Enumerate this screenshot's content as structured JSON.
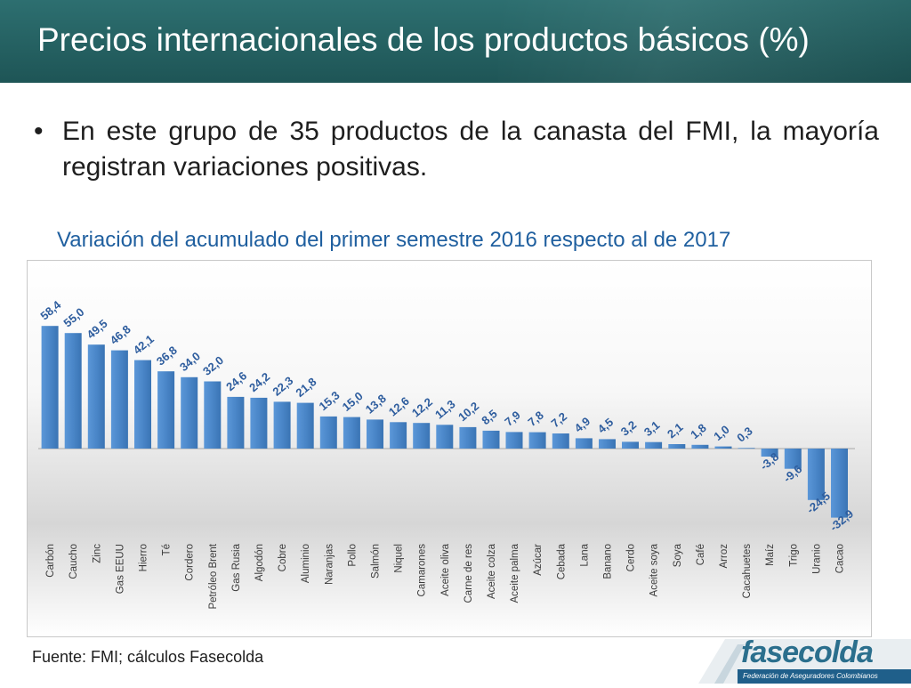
{
  "slide": {
    "title": "Precios internacionales de los productos básicos (%)",
    "bullet_symbol": "•",
    "bullet_text": "En este grupo de 35 productos de la canasta del FMI, la mayoría registran variaciones positivas.",
    "chart_heading": "Variación del acumulado del primer semestre 2016 respecto al de 2017",
    "source": "Fuente: FMI; cálculos Fasecolda"
  },
  "logo": {
    "name": "fasecolda",
    "subtitle": "Federación de Aseguradores Colombianos"
  },
  "colors": {
    "header": "#1e5556",
    "bar": "#4a86c8",
    "value_label": "#2e5d9e",
    "heading": "#1f5f9f"
  },
  "chart_data": {
    "type": "bar",
    "title": "Variación del acumulado del primer semestre 2016 respecto al de 2017",
    "xlabel": "",
    "ylabel": "",
    "ylim": [
      -35,
      62
    ],
    "grid": false,
    "legend": "none",
    "categories": [
      "Carbón",
      "Caucho",
      "Zinc",
      "Gas EEUU",
      "Hierro",
      "Té",
      "Cordero",
      "Petróleo Brent",
      "Gas Rusia",
      "Algodón",
      "Cobre",
      "Aluminio",
      "Naranjas",
      "Pollo",
      "Salmón",
      "Niquel",
      "Camarones",
      "Aceite oliva",
      "Carne de res",
      "Aceite colza",
      "Aceite palma",
      "Azúcar",
      "Cebada",
      "Lana",
      "Banano",
      "Cerdo",
      "Aceite soya",
      "Soya",
      "Café",
      "Arroz",
      "Cacahuetes",
      "Maíz",
      "Trigo",
      "Uranio",
      "Cacao"
    ],
    "values": [
      58.4,
      55.0,
      49.5,
      46.8,
      42.1,
      36.8,
      34.0,
      32.0,
      24.6,
      24.2,
      22.3,
      21.8,
      15.3,
      15.0,
      13.8,
      12.6,
      12.2,
      11.3,
      10.2,
      8.5,
      7.9,
      7.8,
      7.2,
      4.9,
      4.5,
      3.2,
      3.1,
      2.1,
      1.8,
      1.0,
      0.3,
      -3.8,
      -9.6,
      -24.5,
      -32.9
    ],
    "labels": [
      "58,4",
      "55,0",
      "49,5",
      "46,8",
      "42,1",
      "36,8",
      "34,0",
      "32,0",
      "24,6",
      "24,2",
      "22,3",
      "21,8",
      "15,3",
      "15,0",
      "13,8",
      "12,6",
      "12,2",
      "11,3",
      "10,2",
      "8,5",
      "7,9",
      "7,8",
      "7,2",
      "4,9",
      "4,5",
      "3,2",
      "3,1",
      "2,1",
      "1,8",
      "1,0",
      "0,3",
      "-3,8",
      "-9,6",
      "-24,5",
      "-32,9"
    ]
  }
}
